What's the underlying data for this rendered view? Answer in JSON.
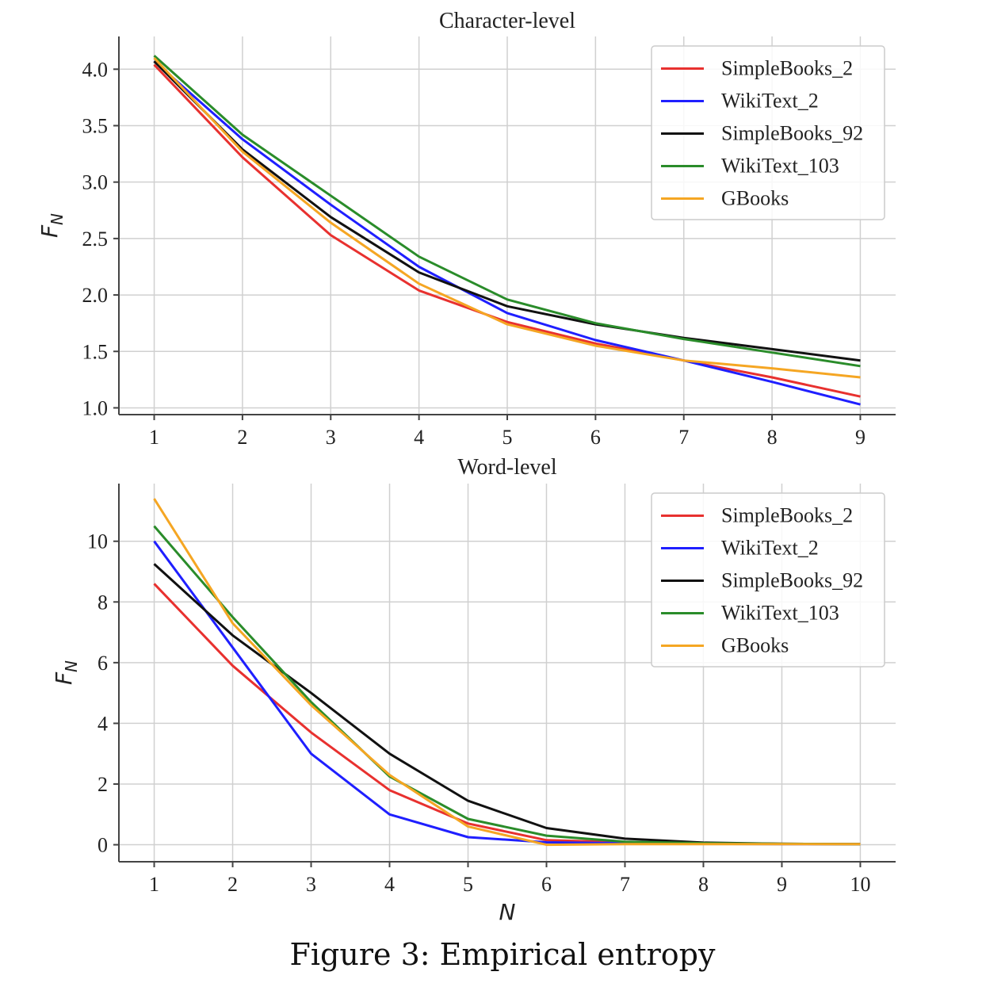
{
  "caption": "Figure 3: Empirical entropy",
  "chart_data": [
    {
      "type": "line",
      "title": "Character-level",
      "xlabel": "",
      "ylabel": "F_N",
      "x": [
        1,
        2,
        3,
        4,
        5,
        6,
        7,
        8,
        9
      ],
      "xticks": [
        1,
        2,
        3,
        4,
        5,
        6,
        7,
        8,
        9
      ],
      "yticks": [
        1.0,
        1.5,
        2.0,
        2.5,
        3.0,
        3.5,
        4.0
      ],
      "ytick_labels": [
        "1.0",
        "1.5",
        "2.0",
        "2.5",
        "3.0",
        "3.5",
        "4.0"
      ],
      "xlim": [
        0.6,
        9.4
      ],
      "ylim": [
        0.94,
        4.29
      ],
      "grid": true,
      "legend_position": "top-right",
      "series": [
        {
          "name": "SimpleBooks_2",
          "color": "#e8312f",
          "values": [
            4.04,
            3.22,
            2.53,
            2.04,
            1.76,
            1.57,
            1.42,
            1.27,
            1.1
          ]
        },
        {
          "name": "WikiText_2",
          "color": "#1f1fff",
          "values": [
            4.07,
            3.38,
            2.8,
            2.25,
            1.84,
            1.6,
            1.42,
            1.23,
            1.03
          ]
        },
        {
          "name": "SimpleBooks_92",
          "color": "#111111",
          "values": [
            4.07,
            3.29,
            2.69,
            2.2,
            1.9,
            1.74,
            1.62,
            1.52,
            1.42
          ]
        },
        {
          "name": "WikiText_103",
          "color": "#2a8c2a",
          "values": [
            4.12,
            3.42,
            2.88,
            2.34,
            1.96,
            1.75,
            1.61,
            1.49,
            1.37
          ]
        },
        {
          "name": "GBooks",
          "color": "#f5a623",
          "values": [
            4.1,
            3.27,
            2.64,
            2.1,
            1.74,
            1.55,
            1.42,
            1.35,
            1.27
          ]
        }
      ]
    },
    {
      "type": "line",
      "title": "Word-level",
      "xlabel": "N",
      "ylabel": "F_N",
      "x": [
        1,
        2,
        3,
        4,
        5,
        6,
        7,
        8,
        9,
        10
      ],
      "xticks": [
        1,
        2,
        3,
        4,
        5,
        6,
        7,
        8,
        9,
        10
      ],
      "yticks": [
        0,
        2,
        4,
        6,
        8,
        10
      ],
      "ytick_labels": [
        "0",
        "2",
        "4",
        "6",
        "8",
        "10"
      ],
      "xlim": [
        0.55,
        10.45
      ],
      "ylim": [
        -0.56,
        11.9
      ],
      "grid": true,
      "legend_position": "top-right",
      "series": [
        {
          "name": "SimpleBooks_2",
          "color": "#e8312f",
          "values": [
            8.6,
            5.9,
            3.7,
            1.8,
            0.7,
            0.15,
            0.08,
            0.05,
            0.03,
            0.02
          ]
        },
        {
          "name": "WikiText_2",
          "color": "#1f1fff",
          "values": [
            10.0,
            6.5,
            3.0,
            1.0,
            0.25,
            0.08,
            0.05,
            0.03,
            0.02,
            0.02
          ]
        },
        {
          "name": "SimpleBooks_92",
          "color": "#111111",
          "values": [
            9.25,
            6.9,
            5.0,
            3.0,
            1.45,
            0.55,
            0.2,
            0.07,
            0.03,
            0.02
          ]
        },
        {
          "name": "WikiText_103",
          "color": "#2a8c2a",
          "values": [
            10.5,
            7.5,
            4.7,
            2.25,
            0.85,
            0.3,
            0.1,
            0.05,
            0.03,
            0.02
          ]
        },
        {
          "name": "GBooks",
          "color": "#f5a623",
          "values": [
            11.4,
            7.3,
            4.6,
            2.3,
            0.6,
            0.0,
            0.02,
            0.02,
            0.02,
            0.02
          ]
        }
      ]
    }
  ]
}
